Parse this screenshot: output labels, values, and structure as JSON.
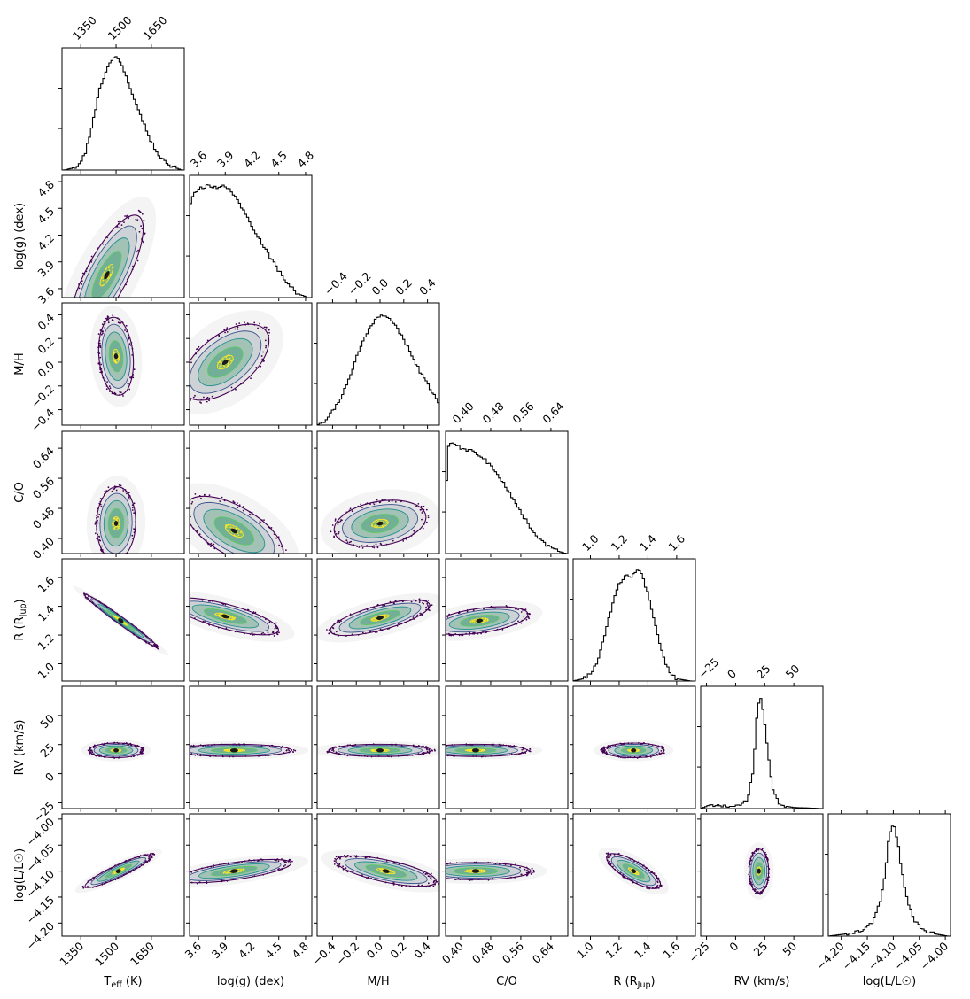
{
  "chart_data": {
    "type": "corner",
    "parameters": [
      {
        "key": "teff",
        "label": "T_eff (K)",
        "label_main": "T",
        "label_sub": "eff",
        "label_tail": " (K)",
        "range": [
          1270,
          1790
        ],
        "ticks": [
          1350,
          1500,
          1650
        ],
        "tick_labels": [
          "1350",
          "1500",
          "1650"
        ]
      },
      {
        "key": "logg",
        "label": "log(g) (dex)",
        "label_main": "log(g) (dex)",
        "label_sub": "",
        "label_tail": "",
        "range": [
          3.5,
          4.87
        ],
        "ticks": [
          3.6,
          3.9,
          4.2,
          4.5,
          4.8
        ],
        "tick_labels": [
          "3.6",
          "3.9",
          "4.2",
          "4.5",
          "4.8"
        ]
      },
      {
        "key": "mh",
        "label": "M/H",
        "label_main": "M/H",
        "label_sub": "",
        "label_tail": "",
        "range": [
          -0.53,
          0.5
        ],
        "ticks": [
          -0.4,
          -0.2,
          0.0,
          0.2,
          0.4
        ],
        "tick_labels": [
          "−0.4",
          "−0.2",
          "0.0",
          "0.2",
          "0.4"
        ]
      },
      {
        "key": "co",
        "label": "C/O",
        "label_main": "C/O",
        "label_sub": "",
        "label_tail": "",
        "range": [
          0.36,
          0.685
        ],
        "ticks": [
          0.4,
          0.48,
          0.56,
          0.64
        ],
        "tick_labels": [
          "0.40",
          "0.48",
          "0.56",
          "0.64"
        ]
      },
      {
        "key": "r",
        "label": "R (R_Jup)",
        "label_main": "R (R",
        "label_sub": "Jup",
        "label_tail": ")",
        "range": [
          0.88,
          1.73
        ],
        "ticks": [
          1.0,
          1.2,
          1.4,
          1.6
        ],
        "tick_labels": [
          "1.0",
          "1.2",
          "1.4",
          "1.6"
        ]
      },
      {
        "key": "rv",
        "label": "RV (km/s)",
        "label_main": "RV (km/s)",
        "label_sub": "",
        "label_tail": "",
        "range": [
          -30,
          75
        ],
        "ticks": [
          -25,
          0,
          25,
          50
        ],
        "tick_labels": [
          "−25",
          "0",
          "25",
          "50"
        ]
      },
      {
        "key": "logl",
        "label": "log(L/L☉)",
        "label_main": "log(L/L☉)",
        "label_sub": "",
        "label_tail": "",
        "range": [
          -4.225,
          -3.99
        ],
        "ticks": [
          -4.2,
          -4.15,
          -4.1,
          -4.05,
          -4.0
        ],
        "tick_labels": [
          "−4.20",
          "−4.15",
          "−4.10",
          "−4.05",
          "−4.00"
        ]
      }
    ],
    "marginals": [
      {
        "key": "teff",
        "x": [
          1280,
          1340,
          1370,
          1400,
          1430,
          1460,
          1480,
          1500,
          1520,
          1540,
          1560,
          1590,
          1620,
          1650,
          1680,
          1710,
          1740,
          1780
        ],
        "density": [
          0.0,
          0.03,
          0.16,
          0.42,
          0.72,
          0.9,
          0.97,
          1.0,
          0.95,
          0.85,
          0.74,
          0.56,
          0.4,
          0.25,
          0.14,
          0.07,
          0.03,
          0.0
        ]
      },
      {
        "key": "logg",
        "x": [
          3.5,
          3.52,
          3.6,
          3.7,
          3.8,
          3.9,
          4.0,
          4.1,
          4.2,
          4.3,
          4.4,
          4.5,
          4.6,
          4.7,
          4.8
        ],
        "density": [
          0.72,
          0.9,
          0.96,
          1.0,
          0.98,
          0.99,
          0.92,
          0.78,
          0.64,
          0.5,
          0.36,
          0.24,
          0.13,
          0.04,
          0.01
        ]
      },
      {
        "key": "mh",
        "x": [
          -0.53,
          -0.45,
          -0.35,
          -0.25,
          -0.15,
          -0.05,
          0.0,
          0.05,
          0.15,
          0.25,
          0.35,
          0.45,
          0.5
        ],
        "density": [
          0.0,
          0.05,
          0.2,
          0.45,
          0.74,
          0.93,
          0.98,
          0.98,
          0.85,
          0.66,
          0.45,
          0.28,
          0.18
        ]
      },
      {
        "key": "co",
        "x": [
          0.36,
          0.364,
          0.38,
          0.4,
          0.42,
          0.44,
          0.46,
          0.48,
          0.5,
          0.52,
          0.54,
          0.56,
          0.58,
          0.6,
          0.62,
          0.64,
          0.66,
          0.68
        ],
        "density": [
          0.0,
          0.95,
          0.98,
          0.94,
          0.92,
          0.9,
          0.85,
          0.78,
          0.7,
          0.6,
          0.48,
          0.37,
          0.26,
          0.17,
          0.1,
          0.05,
          0.02,
          0.0
        ]
      },
      {
        "key": "r",
        "x": [
          0.88,
          0.95,
          1.0,
          1.05,
          1.1,
          1.15,
          1.2,
          1.25,
          1.28,
          1.3,
          1.33,
          1.36,
          1.4,
          1.45,
          1.5,
          1.55,
          1.6,
          1.7
        ],
        "density": [
          0.0,
          0.02,
          0.06,
          0.18,
          0.4,
          0.67,
          0.86,
          0.96,
          0.9,
          0.96,
          1.0,
          0.94,
          0.78,
          0.5,
          0.24,
          0.08,
          0.02,
          0.0
        ]
      },
      {
        "key": "rv",
        "x": [
          -30,
          -25,
          -15,
          -5,
          0,
          5,
          10,
          15,
          18,
          21,
          24,
          28,
          32,
          38,
          50,
          75
        ],
        "density": [
          0.0,
          0.02,
          0.03,
          0.02,
          0.02,
          0.03,
          0.08,
          0.32,
          0.8,
          1.0,
          0.86,
          0.48,
          0.16,
          0.03,
          0.01,
          0.0
        ]
      },
      {
        "key": "logl",
        "x": [
          -4.225,
          -4.19,
          -4.16,
          -4.14,
          -4.125,
          -4.115,
          -4.108,
          -4.1,
          -4.092,
          -4.085,
          -4.075,
          -4.06,
          -4.04,
          -4.02,
          -3.995
        ],
        "density": [
          0.0,
          0.02,
          0.05,
          0.12,
          0.3,
          0.58,
          0.9,
          1.0,
          0.86,
          0.62,
          0.36,
          0.14,
          0.05,
          0.02,
          0.0
        ]
      }
    ],
    "joint_2d": [
      {
        "x": "teff",
        "y": "logg",
        "center": [
          1460,
          3.75
        ],
        "angle_deg": 62,
        "spread": [
          0.55,
          0.17
        ]
      },
      {
        "x": "teff",
        "y": "mh",
        "center": [
          1500,
          0.05
        ],
        "angle_deg": 95,
        "spread": [
          0.32,
          0.14
        ]
      },
      {
        "x": "teff",
        "y": "co",
        "center": [
          1500,
          0.44
        ],
        "angle_deg": 88,
        "spread": [
          0.3,
          0.16
        ]
      },
      {
        "x": "teff",
        "y": "r",
        "center": [
          1520,
          1.3
        ],
        "angle_deg": -36,
        "spread": [
          0.37,
          0.03
        ]
      },
      {
        "x": "teff",
        "y": "rv",
        "center": [
          1500,
          20
        ],
        "angle_deg": 0,
        "spread": [
          0.22,
          0.06
        ]
      },
      {
        "x": "teff",
        "y": "logl",
        "center": [
          1510,
          -4.1
        ],
        "angle_deg": 25,
        "spread": [
          0.3,
          0.05
        ]
      },
      {
        "x": "logg",
        "y": "mh",
        "center": [
          3.9,
          0.0
        ],
        "angle_deg": 38,
        "spread": [
          0.42,
          0.22
        ]
      },
      {
        "x": "logg",
        "y": "co",
        "center": [
          4.0,
          0.42
        ],
        "angle_deg": -30,
        "spread": [
          0.45,
          0.2
        ]
      },
      {
        "x": "logg",
        "y": "r",
        "center": [
          3.9,
          1.33
        ],
        "angle_deg": -15,
        "spread": [
          0.45,
          0.1
        ]
      },
      {
        "x": "logg",
        "y": "rv",
        "center": [
          4.0,
          20
        ],
        "angle_deg": 0,
        "spread": [
          0.47,
          0.05
        ]
      },
      {
        "x": "logg",
        "y": "logl",
        "center": [
          4.0,
          -4.1
        ],
        "angle_deg": 8,
        "spread": [
          0.47,
          0.07
        ]
      },
      {
        "x": "mh",
        "y": "co",
        "center": [
          0.0,
          0.44
        ],
        "angle_deg": 10,
        "spread": [
          0.38,
          0.18
        ]
      },
      {
        "x": "mh",
        "y": "r",
        "center": [
          0.0,
          1.32
        ],
        "angle_deg": 15,
        "spread": [
          0.42,
          0.1
        ]
      },
      {
        "x": "mh",
        "y": "rv",
        "center": [
          0.0,
          20
        ],
        "angle_deg": 0,
        "spread": [
          0.42,
          0.05
        ]
      },
      {
        "x": "mh",
        "y": "logl",
        "center": [
          0.05,
          -4.1
        ],
        "angle_deg": -12,
        "spread": [
          0.42,
          0.09
        ]
      },
      {
        "x": "co",
        "y": "r",
        "center": [
          0.45,
          1.3
        ],
        "angle_deg": 8,
        "spread": [
          0.4,
          0.1
        ]
      },
      {
        "x": "co",
        "y": "rv",
        "center": [
          0.44,
          20
        ],
        "angle_deg": 0,
        "spread": [
          0.42,
          0.05
        ]
      },
      {
        "x": "co",
        "y": "logl",
        "center": [
          0.44,
          -4.1
        ],
        "angle_deg": 0,
        "spread": [
          0.45,
          0.07
        ]
      },
      {
        "x": "r",
        "y": "rv",
        "center": [
          1.3,
          20
        ],
        "angle_deg": 0,
        "spread": [
          0.25,
          0.06
        ]
      },
      {
        "x": "r",
        "y": "logl",
        "center": [
          1.3,
          -4.1
        ],
        "angle_deg": -30,
        "spread": [
          0.25,
          0.08
        ]
      },
      {
        "x": "rv",
        "y": "logl",
        "center": [
          20,
          -4.1
        ],
        "angle_deg": 90,
        "spread": [
          0.18,
          0.08
        ]
      }
    ],
    "contour_colors": [
      "#440154",
      "#3b528b",
      "#21918c",
      "#5ec962",
      "#fde725"
    ],
    "core_color": "#1a1a1a",
    "line_color": "#000000"
  }
}
